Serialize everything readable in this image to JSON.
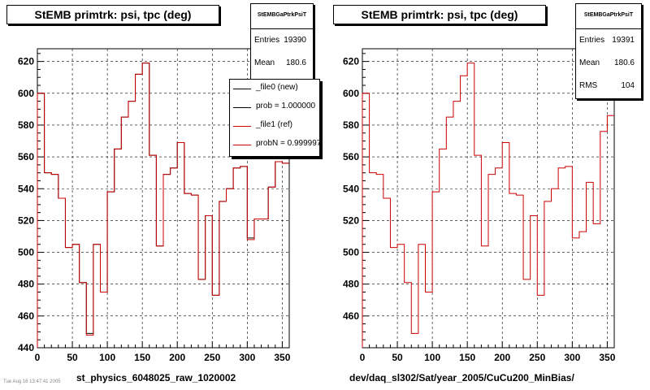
{
  "chart_data": [
    {
      "type": "line",
      "title": "StEMB primtrk: psi, tpc (deg)",
      "xlabel": "st_physics_6048025_raw_1020002",
      "ylabel": "",
      "xlim": [
        0,
        360
      ],
      "ylim": [
        440,
        628
      ],
      "xticks": [
        0,
        50,
        100,
        150,
        200,
        250,
        300,
        350
      ],
      "yticks": [
        440,
        460,
        480,
        500,
        520,
        540,
        560,
        580,
        600,
        620
      ],
      "grid": true,
      "x_bin_edges": [
        0,
        10,
        20,
        30,
        40,
        50,
        60,
        70,
        80,
        90,
        100,
        110,
        120,
        130,
        140,
        150,
        160,
        170,
        180,
        190,
        200,
        210,
        220,
        230,
        240,
        250,
        260,
        270,
        280,
        290,
        300,
        310,
        320,
        330,
        340,
        350,
        360
      ],
      "series": [
        {
          "name": "_file0 (new)",
          "color": "#000000",
          "values": [
            600,
            550,
            549,
            534,
            503,
            505,
            481,
            449,
            505,
            475,
            538,
            565,
            585,
            595,
            612,
            619,
            561,
            504,
            549,
            553,
            569,
            537,
            536,
            483,
            523,
            473,
            532,
            540,
            553,
            554,
            509,
            521,
            521,
            541,
            557,
            556
          ]
        },
        {
          "name": "_file1 (ref)",
          "color": "#cc0000",
          "values": [
            600,
            550,
            549,
            534,
            503,
            505,
            481,
            448,
            505,
            475,
            538,
            565,
            585,
            595,
            612,
            619,
            561,
            504,
            549,
            553,
            569,
            537,
            536,
            483,
            523,
            473,
            532,
            540,
            553,
            554,
            508,
            521,
            521,
            541,
            557,
            556
          ]
        }
      ],
      "stats": {
        "name": "StEMBGaPtrkPsiT",
        "entries_label": "Entries",
        "entries": "19390",
        "mean_label": "Mean",
        "mean": "180.6"
      },
      "legend": {
        "position": "top-right",
        "entries": [
          {
            "label": "_file0 (new)",
            "color": "#000000"
          },
          {
            "label": "prob = 1.000000",
            "color": "#000000"
          },
          {
            "label": "_file1 (ref)",
            "color": "#cc0000"
          },
          {
            "label": "probN = 0.999997",
            "color": "#cc0000"
          }
        ]
      }
    },
    {
      "type": "line",
      "title": "StEMB primtrk: psi, tpc (deg)",
      "xlabel": "dev/daq_sl302/Sat/year_2005/CuCu200_MinBias/",
      "ylabel": "",
      "xlim": [
        0,
        360
      ],
      "ylim": [
        440,
        628
      ],
      "xticks": [
        0,
        50,
        100,
        150,
        200,
        250,
        300,
        350
      ],
      "yticks": [
        460,
        480,
        500,
        520,
        540,
        560,
        580,
        600,
        620
      ],
      "grid": true,
      "x_bin_edges": [
        0,
        10,
        20,
        30,
        40,
        50,
        60,
        70,
        80,
        90,
        100,
        110,
        120,
        130,
        140,
        150,
        160,
        170,
        180,
        190,
        200,
        210,
        220,
        230,
        240,
        250,
        260,
        270,
        280,
        290,
        300,
        310,
        320,
        330,
        340,
        350,
        360
      ],
      "series": [
        {
          "name": "",
          "color": "#cc0000",
          "values": [
            600,
            550,
            549,
            534,
            503,
            505,
            481,
            449,
            505,
            475,
            538,
            565,
            585,
            595,
            611,
            619,
            561,
            504,
            549,
            553,
            569,
            537,
            536,
            483,
            523,
            473,
            532,
            540,
            553,
            554,
            509,
            513,
            544,
            518,
            576,
            586
          ]
        }
      ],
      "stats": {
        "name": "StEMBGaPtrkPsiT",
        "entries_label": "Entries",
        "entries": "19391",
        "mean_label": "Mean",
        "mean": "180.6",
        "rms_label": "RMS",
        "rms": "104"
      }
    }
  ],
  "footer_text": "Tue Aug 16 13:47:41 2005"
}
